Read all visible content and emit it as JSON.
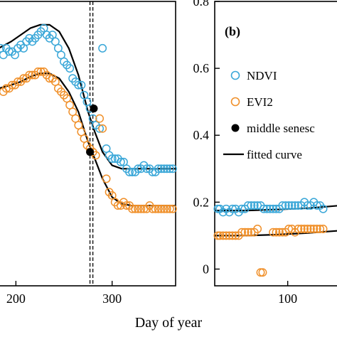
{
  "chart_data": [
    {
      "panel": "a",
      "type": "scatter",
      "xlabel": "",
      "xlim": [
        182,
        366
      ],
      "ylim": [
        -0.05,
        0.8
      ],
      "x_ticks": [
        {
          "value": 200,
          "label": "200"
        },
        {
          "value": 300,
          "label": "300"
        }
      ],
      "vlines": [
        277,
        280
      ],
      "series": [
        {
          "name": "NDVI",
          "color": "#3aa7d8",
          "points": [
            [
              184,
              0.66
            ],
            [
              187,
              0.64
            ],
            [
              190,
              0.66
            ],
            [
              193,
              0.65
            ],
            [
              196,
              0.65
            ],
            [
              199,
              0.64
            ],
            [
              202,
              0.66
            ],
            [
              205,
              0.67
            ],
            [
              208,
              0.66
            ],
            [
              211,
              0.68
            ],
            [
              214,
              0.69
            ],
            [
              217,
              0.68
            ],
            [
              220,
              0.69
            ],
            [
              223,
              0.7
            ],
            [
              226,
              0.71
            ],
            [
              229,
              0.72
            ],
            [
              232,
              0.7
            ],
            [
              235,
              0.69
            ],
            [
              238,
              0.7
            ],
            [
              241,
              0.68
            ],
            [
              244,
              0.66
            ],
            [
              247,
              0.64
            ],
            [
              250,
              0.62
            ],
            [
              253,
              0.61
            ],
            [
              256,
              0.6
            ],
            [
              259,
              0.57
            ],
            [
              262,
              0.56
            ],
            [
              265,
              0.55
            ],
            [
              268,
              0.55
            ],
            [
              271,
              0.52
            ],
            [
              274,
              0.5
            ],
            [
              277,
              0.48
            ],
            [
              280,
              0.45
            ],
            [
              283,
              0.43
            ],
            [
              287,
              0.42
            ],
            [
              290,
              0.66
            ],
            [
              294,
              0.36
            ],
            [
              297,
              0.34
            ],
            [
              300,
              0.33
            ],
            [
              303,
              0.33
            ],
            [
              306,
              0.33
            ],
            [
              309,
              0.32
            ],
            [
              312,
              0.32
            ],
            [
              315,
              0.3
            ],
            [
              318,
              0.29
            ],
            [
              321,
              0.29
            ],
            [
              324,
              0.29
            ],
            [
              327,
              0.3
            ],
            [
              330,
              0.3
            ],
            [
              333,
              0.31
            ],
            [
              336,
              0.3
            ],
            [
              339,
              0.3
            ],
            [
              342,
              0.29
            ],
            [
              345,
              0.29
            ],
            [
              348,
              0.3
            ],
            [
              351,
              0.3
            ],
            [
              354,
              0.3
            ],
            [
              357,
              0.3
            ],
            [
              360,
              0.3
            ],
            [
              363,
              0.3
            ]
          ]
        },
        {
          "name": "EVI2",
          "color": "#f0902a",
          "points": [
            [
              187,
              0.53
            ],
            [
              190,
              0.54
            ],
            [
              193,
              0.54
            ],
            [
              196,
              0.55
            ],
            [
              199,
              0.55
            ],
            [
              202,
              0.56
            ],
            [
              205,
              0.56
            ],
            [
              208,
              0.57
            ],
            [
              211,
              0.57
            ],
            [
              214,
              0.58
            ],
            [
              217,
              0.58
            ],
            [
              220,
              0.58
            ],
            [
              223,
              0.59
            ],
            [
              226,
              0.59
            ],
            [
              229,
              0.59
            ],
            [
              232,
              0.58
            ],
            [
              235,
              0.57
            ],
            [
              238,
              0.57
            ],
            [
              241,
              0.56
            ],
            [
              244,
              0.54
            ],
            [
              247,
              0.53
            ],
            [
              250,
              0.52
            ],
            [
              253,
              0.51
            ],
            [
              256,
              0.49
            ],
            [
              259,
              0.47
            ],
            [
              262,
              0.45
            ],
            [
              265,
              0.43
            ],
            [
              268,
              0.41
            ],
            [
              271,
              0.39
            ],
            [
              274,
              0.37
            ],
            [
              277,
              0.36
            ],
            [
              280,
              0.35
            ],
            [
              283,
              0.34
            ],
            [
              287,
              0.45
            ],
            [
              290,
              0.42
            ],
            [
              294,
              0.27
            ],
            [
              297,
              0.23
            ],
            [
              300,
              0.22
            ],
            [
              303,
              0.2
            ],
            [
              306,
              0.19
            ],
            [
              309,
              0.19
            ],
            [
              312,
              0.2
            ],
            [
              315,
              0.19
            ],
            [
              318,
              0.19
            ],
            [
              321,
              0.18
            ],
            [
              324,
              0.18
            ],
            [
              327,
              0.18
            ],
            [
              330,
              0.18
            ],
            [
              333,
              0.18
            ],
            [
              336,
              0.18
            ],
            [
              339,
              0.19
            ],
            [
              342,
              0.18
            ],
            [
              345,
              0.18
            ],
            [
              348,
              0.18
            ],
            [
              351,
              0.18
            ],
            [
              354,
              0.18
            ],
            [
              357,
              0.18
            ],
            [
              360,
              0.18
            ],
            [
              363,
              0.18
            ]
          ]
        }
      ],
      "fitted_curves": [
        {
          "name": "NDVI fit",
          "points": [
            [
              182,
              0.66
            ],
            [
              195,
              0.68
            ],
            [
              205,
              0.7
            ],
            [
              215,
              0.72
            ],
            [
              225,
              0.73
            ],
            [
              235,
              0.73
            ],
            [
              245,
              0.71
            ],
            [
              255,
              0.66
            ],
            [
              265,
              0.58
            ],
            [
              275,
              0.47
            ],
            [
              282,
              0.41
            ],
            [
              290,
              0.35
            ],
            [
              300,
              0.31
            ],
            [
              310,
              0.3
            ],
            [
              320,
              0.3
            ],
            [
              340,
              0.3
            ],
            [
              366,
              0.3
            ]
          ]
        },
        {
          "name": "EVI2 fit",
          "points": [
            [
              182,
              0.54
            ],
            [
              195,
              0.55
            ],
            [
              205,
              0.56
            ],
            [
              215,
              0.575
            ],
            [
              225,
              0.585
            ],
            [
              235,
              0.585
            ],
            [
              245,
              0.57
            ],
            [
              255,
              0.53
            ],
            [
              265,
              0.47
            ],
            [
              275,
              0.38
            ],
            [
              282,
              0.33
            ],
            [
              290,
              0.27
            ],
            [
              300,
              0.215
            ],
            [
              310,
              0.195
            ],
            [
              320,
              0.19
            ],
            [
              340,
              0.19
            ],
            [
              366,
              0.19
            ]
          ]
        }
      ],
      "middle_senescence": [
        {
          "name": "NDVI",
          "x": 281,
          "y": 0.48
        },
        {
          "name": "EVI2",
          "x": 277,
          "y": 0.35
        }
      ]
    },
    {
      "panel": "b",
      "panel_label": "(b)",
      "type": "scatter",
      "xlabel": "",
      "xlim": [
        30,
        150
      ],
      "ylim": [
        -0.05,
        0.8
      ],
      "y_ticks": [
        {
          "value": 0,
          "label": "0"
        },
        {
          "value": 0.2,
          "label": "0.2"
        },
        {
          "value": 0.4,
          "label": "0.4"
        },
        {
          "value": 0.6,
          "label": "0.6"
        },
        {
          "value": 0.8,
          "label": "0.8"
        }
      ],
      "x_ticks": [
        {
          "value": 100,
          "label": "100"
        }
      ],
      "series": [
        {
          "name": "NDVI",
          "color": "#3aa7d8",
          "points": [
            [
              33,
              0.18
            ],
            [
              35,
              0.18
            ],
            [
              38,
              0.17
            ],
            [
              41,
              0.18
            ],
            [
              44,
              0.17
            ],
            [
              47,
              0.18
            ],
            [
              50,
              0.18
            ],
            [
              53,
              0.17
            ],
            [
              56,
              0.18
            ],
            [
              59,
              0.18
            ],
            [
              62,
              0.19
            ],
            [
              65,
              0.19
            ],
            [
              68,
              0.19
            ],
            [
              71,
              0.19
            ],
            [
              74,
              0.19
            ],
            [
              77,
              0.18
            ],
            [
              80,
              0.18
            ],
            [
              83,
              0.18
            ],
            [
              86,
              0.18
            ],
            [
              89,
              0.18
            ],
            [
              92,
              0.18
            ],
            [
              95,
              0.19
            ],
            [
              98,
              0.19
            ],
            [
              101,
              0.19
            ],
            [
              104,
              0.19
            ],
            [
              107,
              0.19
            ],
            [
              110,
              0.19
            ],
            [
              113,
              0.19
            ],
            [
              116,
              0.2
            ],
            [
              119,
              0.19
            ],
            [
              122,
              0.19
            ],
            [
              125,
              0.2
            ],
            [
              128,
              0.19
            ],
            [
              131,
              0.19
            ],
            [
              134,
              0.18
            ]
          ]
        },
        {
          "name": "EVI2",
          "color": "#f0902a",
          "points": [
            [
              33,
              0.1
            ],
            [
              35,
              0.1
            ],
            [
              38,
              0.1
            ],
            [
              41,
              0.1
            ],
            [
              44,
              0.1
            ],
            [
              47,
              0.1
            ],
            [
              50,
              0.1
            ],
            [
              53,
              0.1
            ],
            [
              56,
              0.11
            ],
            [
              59,
              0.11
            ],
            [
              62,
              0.11
            ],
            [
              65,
              0.11
            ],
            [
              68,
              0.11
            ],
            [
              71,
              0.12
            ],
            [
              74,
              -0.01
            ],
            [
              76,
              -0.01
            ],
            [
              86,
              0.11
            ],
            [
              89,
              0.11
            ],
            [
              92,
              0.11
            ],
            [
              95,
              0.11
            ],
            [
              98,
              0.11
            ],
            [
              101,
              0.12
            ],
            [
              104,
              0.12
            ],
            [
              107,
              0.11
            ],
            [
              110,
              0.12
            ],
            [
              113,
              0.12
            ],
            [
              116,
              0.12
            ],
            [
              119,
              0.12
            ],
            [
              122,
              0.12
            ],
            [
              125,
              0.12
            ],
            [
              128,
              0.12
            ],
            [
              131,
              0.12
            ],
            [
              134,
              0.12
            ]
          ]
        }
      ],
      "fitted_curves": [
        {
          "name": "NDVI fit",
          "points": [
            [
              30,
              0.175
            ],
            [
              60,
              0.175
            ],
            [
              90,
              0.178
            ],
            [
              120,
              0.182
            ],
            [
              150,
              0.19
            ]
          ]
        },
        {
          "name": "EVI2 fit",
          "points": [
            [
              30,
              0.1
            ],
            [
              60,
              0.1
            ],
            [
              90,
              0.103
            ],
            [
              120,
              0.108
            ],
            [
              150,
              0.115
            ]
          ]
        }
      ]
    }
  ],
  "shared": {
    "xlabel": "Day of year"
  },
  "legend": {
    "placement": "right",
    "items": [
      {
        "label": "NDVI",
        "marker": "open-circle",
        "color": "#3aa7d8"
      },
      {
        "label": "EVI2",
        "marker": "open-circle",
        "color": "#f0902a"
      },
      {
        "label": "middle senesc",
        "marker": "filled-circle",
        "color": "#000000"
      },
      {
        "label": "fitted curve",
        "marker": "line",
        "color": "#000000"
      }
    ]
  }
}
